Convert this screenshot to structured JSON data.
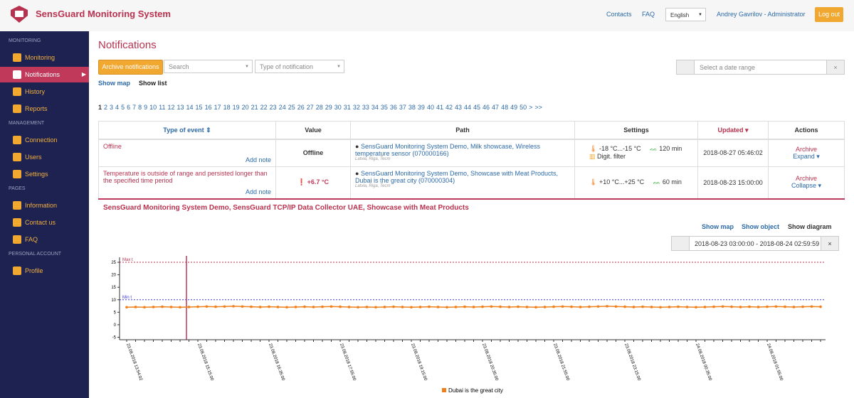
{
  "header": {
    "brand": "SensGuard Monitoring System",
    "links": [
      "Contacts",
      "FAQ"
    ],
    "language": "English",
    "user": "Andrey Gavrilov - Administrator",
    "logout": "Log out"
  },
  "sidebar": {
    "sections": [
      {
        "title": "MONITORING",
        "items": [
          "Monitoring",
          "Notifications",
          "History",
          "Reports"
        ]
      },
      {
        "title": "MANAGEMENT",
        "items": [
          "Connection",
          "Users",
          "Settings"
        ]
      },
      {
        "title": "PAGES",
        "items": [
          "Information",
          "Contact us",
          "FAQ"
        ]
      },
      {
        "title": "PERSONAL ACCOUNT",
        "items": [
          "Profile"
        ]
      }
    ],
    "active": "Notifications"
  },
  "page": {
    "title": "Notifications",
    "archive_button": "Archive notifications",
    "search_placeholder": "Search",
    "type_placeholder": "Type of notification",
    "date_placeholder": "Select a date range",
    "tabs": [
      "Show map",
      "Show list"
    ],
    "pages": [
      "1",
      "2",
      "3",
      "4",
      "5",
      "6",
      "7",
      "8",
      "9",
      "10",
      "11",
      "12",
      "13",
      "14",
      "15",
      "16",
      "17",
      "18",
      "19",
      "20",
      "21",
      "22",
      "23",
      "24",
      "25",
      "26",
      "27",
      "28",
      "29",
      "30",
      "31",
      "32",
      "33",
      "34",
      "35",
      "36",
      "37",
      "38",
      "39",
      "40",
      "41",
      "42",
      "43",
      "44",
      "45",
      "46",
      "47",
      "48",
      "49",
      "50",
      ">",
      ">>"
    ]
  },
  "table": {
    "headers": [
      "Type of event",
      "Value",
      "Path",
      "Settings",
      "Updated",
      "Actions"
    ],
    "rows": [
      {
        "type": "Offline",
        "note": "Add note",
        "value": "Offline",
        "path": "SensGuard Monitoring System Demo, Milk showcase, Wireless temperature sensor (070000166)",
        "location": "Latvia, Riga, Tecm",
        "range": "-18 °C...-15 °C",
        "interval": "120 min",
        "filter": "Digit. filter",
        "updated": "2018-08-27 05:46:02",
        "archive": "Archive",
        "toggle": "Expand"
      },
      {
        "type": "Temperature is outside of range and persisted longer than the specified time period",
        "note": "Add note",
        "value": "+6.7 °C",
        "path": "SensGuard Monitoring System Demo, Showcase with Meat Products, Dubai is the great city (070000304)",
        "location": "Latvia, Riga, Tecm",
        "range": "+10 °C...+25 °C",
        "interval": "60 min",
        "updated": "2018-08-23 15:00:00",
        "archive": "Archive",
        "toggle": "Collapse"
      }
    ]
  },
  "detail": {
    "title": "SensGuard Monitoring System Demo, SensGuard TCP/IP Data Collector UAE, Showcase with Meat Products",
    "tabs": [
      "Show map",
      "Show object",
      "Show diagram"
    ],
    "date_range": "2018-08-23 03:00:00 - 2018-08-24 02:59:59"
  },
  "chart_data": {
    "type": "line",
    "ylim": [
      -6,
      27
    ],
    "yticks": [
      -5,
      0,
      5,
      10,
      15,
      20,
      25
    ],
    "thresholds": [
      {
        "label": "Max t",
        "value": 25,
        "color": "#b8324f"
      },
      {
        "label": "Min t",
        "value": 10,
        "color": "#3a3ad0"
      }
    ],
    "categories": [
      "23.08.2018 13:54:02",
      null,
      null,
      null,
      null,
      null,
      null,
      null,
      "23.08.2018 15:15:00",
      null,
      null,
      null,
      null,
      null,
      null,
      null,
      "23.08.2018 16:35:00",
      null,
      null,
      null,
      null,
      null,
      null,
      null,
      "23.08.2018 17:55:00",
      null,
      null,
      null,
      null,
      null,
      null,
      null,
      "23.08.2018 19:15:00",
      null,
      null,
      null,
      null,
      null,
      null,
      null,
      "23.08.2018 20:35:00",
      null,
      null,
      null,
      null,
      null,
      null,
      null,
      "23.08.2018 21:55:00",
      null,
      null,
      null,
      null,
      null,
      null,
      null,
      "23.08.2018 23:15:00",
      null,
      null,
      null,
      null,
      null,
      null,
      null,
      "24.08.2018 00:35:00",
      null,
      null,
      null,
      null,
      null,
      null,
      null,
      "24.08.2018 01:55:00",
      null,
      null,
      null,
      null,
      null,
      null
    ],
    "series": [
      {
        "name": "Dubai is the great city",
        "color": "#f07f1a",
        "values": [
          7.0,
          7.1,
          7.0,
          7.1,
          7.2,
          7.1,
          7.0,
          7.1,
          7.2,
          7.3,
          7.2,
          7.3,
          7.4,
          7.3,
          7.2,
          7.1,
          7.2,
          7.1,
          7.0,
          7.1,
          7.2,
          7.1,
          7.2,
          7.3,
          7.2,
          7.1,
          7.0,
          7.1,
          7.0,
          7.1,
          7.2,
          7.1,
          7.0,
          7.1,
          7.2,
          7.1,
          7.0,
          7.1,
          7.2,
          7.1,
          7.2,
          7.3,
          7.2,
          7.1,
          7.2,
          7.1,
          7.0,
          7.1,
          7.2,
          7.3,
          7.2,
          7.1,
          7.2,
          7.3,
          7.4,
          7.3,
          7.2,
          7.1,
          7.2,
          7.1,
          7.0,
          7.1,
          7.2,
          7.1,
          7.0,
          7.1,
          7.2,
          7.3,
          7.2,
          7.1,
          7.2,
          7.1,
          7.2,
          7.3,
          7.2,
          7.1,
          7.2,
          7.3,
          7.2
        ]
      }
    ]
  }
}
